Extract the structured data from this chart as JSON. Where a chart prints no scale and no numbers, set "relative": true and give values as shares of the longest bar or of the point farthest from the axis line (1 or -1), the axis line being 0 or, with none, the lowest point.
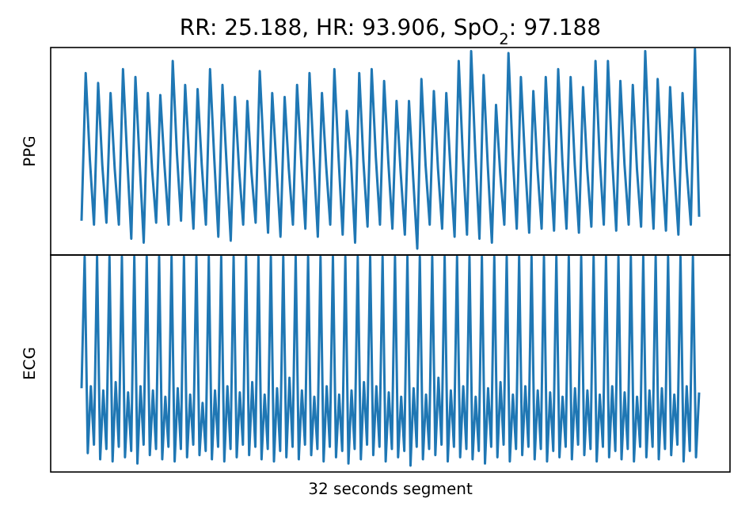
{
  "chart_data": [
    {
      "type": "line",
      "title": "RR: 25.188, HR: 93.906, SpO$_{2}$: 97.188",
      "ylabel": "PPG",
      "relative": true,
      "categories": [
        null,
        null,
        null,
        null,
        null,
        null,
        null,
        null,
        null,
        null,
        null,
        null,
        null,
        null,
        null,
        null,
        null,
        null,
        null,
        null,
        null,
        null,
        null,
        null,
        null,
        null,
        null,
        null,
        null,
        null,
        null,
        null,
        null,
        null,
        null,
        null,
        null,
        null,
        null,
        null,
        null,
        null,
        null,
        null,
        null,
        null,
        null,
        null,
        null,
        null,
        null,
        null,
        null,
        null,
        null,
        null,
        null,
        null,
        null,
        null,
        null,
        null,
        null,
        null,
        null,
        null,
        null,
        null,
        null,
        null,
        null,
        null,
        null,
        null,
        null,
        null,
        null,
        null,
        null,
        null,
        null,
        null,
        null,
        null,
        null,
        null,
        null,
        null,
        null,
        null,
        null,
        null,
        null,
        null,
        null,
        null,
        null,
        null,
        null,
        null,
        null,
        null,
        null,
        null,
        null,
        null,
        null,
        null,
        null,
        null,
        null,
        null,
        null,
        null,
        null,
        null,
        null,
        null,
        null,
        null,
        null,
        null,
        null,
        null,
        null,
        null,
        null,
        null,
        null,
        null,
        null,
        null,
        null,
        null,
        null,
        null,
        null,
        null,
        null,
        null,
        null,
        null,
        null,
        null,
        null,
        null,
        null,
        null,
        null,
        null
      ],
      "series": [
        {
          "color": "#1f77b4",
          "values": [
            0.14,
            0.88,
            0.45,
            0.12,
            0.83,
            0.42,
            0.13,
            0.78,
            0.4,
            0.12,
            0.9,
            0.46,
            0.05,
            0.86,
            0.44,
            0.03,
            0.78,
            0.4,
            0.13,
            0.77,
            0.42,
            0.12,
            0.94,
            0.48,
            0.14,
            0.82,
            0.44,
            0.1,
            0.8,
            0.42,
            0.12,
            0.9,
            0.46,
            0.06,
            0.82,
            0.42,
            0.04,
            0.76,
            0.4,
            0.12,
            0.74,
            0.38,
            0.13,
            0.89,
            0.46,
            0.08,
            0.78,
            0.42,
            0.06,
            0.76,
            0.4,
            0.12,
            0.82,
            0.44,
            0.1,
            0.88,
            0.46,
            0.06,
            0.78,
            0.42,
            0.12,
            0.9,
            0.46,
            0.07,
            0.69,
            0.45,
            0.03,
            0.88,
            0.44,
            0.11,
            0.9,
            0.46,
            0.12,
            0.84,
            0.44,
            0.1,
            0.74,
            0.38,
            0.07,
            0.74,
            0.36,
            0,
            0.85,
            0.42,
            0.12,
            0.79,
            0.4,
            0.1,
            0.78,
            0.4,
            0.06,
            0.94,
            0.46,
            0.07,
            0.99,
            0.48,
            0.05,
            0.87,
            0.42,
            0.03,
            0.72,
            0.38,
            0.12,
            0.98,
            0.48,
            0.1,
            0.86,
            0.44,
            0.08,
            0.79,
            0.4,
            0.1,
            0.86,
            0.44,
            0.09,
            0.9,
            0.44,
            0.1,
            0.86,
            0.42,
            0.08,
            0.81,
            0.4,
            0.11,
            0.94,
            0.46,
            0.12,
            0.94,
            0.46,
            0.09,
            0.84,
            0.42,
            0.12,
            0.82,
            0.4,
            0.11,
            0.99,
            0.48,
            0.1,
            0.85,
            0.42,
            0.09,
            0.81,
            0.4,
            0.07,
            0.78,
            0.4,
            0.12,
            1,
            0.16
          ]
        }
      ]
    },
    {
      "type": "line",
      "ylabel": "ECG",
      "xlabel": "32 seconds segment",
      "relative": true,
      "categories": [
        null,
        null,
        null,
        null,
        null,
        null,
        null,
        null,
        null,
        null,
        null,
        null,
        null,
        null,
        null,
        null,
        null,
        null,
        null,
        null,
        null,
        null,
        null,
        null,
        null,
        null,
        null,
        null,
        null,
        null,
        null,
        null,
        null,
        null,
        null,
        null,
        null,
        null,
        null,
        null,
        null,
        null,
        null,
        null,
        null,
        null,
        null,
        null,
        null,
        null,
        null,
        null,
        null,
        null,
        null,
        null,
        null,
        null,
        null,
        null,
        null,
        null,
        null,
        null,
        null,
        null,
        null,
        null,
        null,
        null,
        null,
        null,
        null,
        null,
        null,
        null,
        null,
        null,
        null,
        null,
        null,
        null,
        null,
        null,
        null,
        null,
        null,
        null,
        null,
        null,
        null,
        null,
        null,
        null,
        null,
        null,
        null,
        null,
        null,
        null,
        null,
        null,
        null,
        null,
        null,
        null,
        null,
        null,
        null,
        null,
        null,
        null,
        null,
        null,
        null,
        null,
        null,
        null,
        null,
        null,
        null,
        null,
        null,
        null,
        null,
        null,
        null,
        null,
        null,
        null,
        null,
        null,
        null,
        null,
        null,
        null,
        null,
        null,
        null,
        null,
        null,
        null,
        null,
        null,
        null,
        null,
        null,
        null,
        null,
        null,
        null,
        null,
        null,
        null,
        null,
        null,
        null,
        null,
        null,
        null,
        null,
        null,
        null,
        null,
        null,
        null,
        null,
        null,
        null,
        null,
        null,
        null,
        null,
        null,
        null,
        null,
        null,
        null,
        null,
        null,
        null,
        null,
        null,
        null,
        null,
        null,
        null,
        null,
        null,
        null,
        null,
        null,
        null,
        null,
        null,
        null,
        null,
        null,
        null,
        null
      ],
      "series": [
        {
          "color": "#1f77b4",
          "values": [
            0.37,
            1,
            0.06,
            0.38,
            0.1,
            1,
            0.03,
            0.36,
            0.08,
            1,
            0.02,
            0.4,
            0.09,
            1,
            0.04,
            0.35,
            0.07,
            1,
            0.01,
            0.38,
            0.1,
            1,
            0.05,
            0.36,
            0.08,
            1,
            0.03,
            0.33,
            0.09,
            1,
            0.02,
            0.37,
            0.08,
            1,
            0.04,
            0.34,
            0.1,
            1,
            0.05,
            0.3,
            0.07,
            1,
            0.03,
            0.36,
            0.09,
            1,
            0.02,
            0.38,
            0.08,
            1,
            0.04,
            0.35,
            0.1,
            1,
            0.05,
            0.4,
            0.09,
            1,
            0.03,
            0.34,
            0.08,
            1,
            0.02,
            0.37,
            0.07,
            1,
            0.04,
            0.42,
            0.09,
            1,
            0.03,
            0.36,
            0.1,
            1,
            0.05,
            0.33,
            0.08,
            1,
            0.02,
            0.38,
            0.09,
            1,
            0.04,
            0.34,
            0.07,
            1,
            0.01,
            0.36,
            0.08,
            1,
            0.03,
            0.4,
            0.1,
            1,
            0.05,
            0.38,
            0.09,
            1,
            0.02,
            0.35,
            0.08,
            1,
            0.04,
            0.33,
            0.07,
            1,
            0.0,
            0.37,
            0.09,
            1,
            0.03,
            0.34,
            0.08,
            1,
            0.05,
            0.42,
            0.1,
            1,
            0.02,
            0.36,
            0.09,
            1,
            0.04,
            0.38,
            0.08,
            1,
            0.03,
            0.33,
            0.07,
            1,
            0.01,
            0.37,
            0.09,
            1,
            0.04,
            0.4,
            0.1,
            1,
            0.02,
            0.34,
            0.08,
            1,
            0.05,
            0.38,
            0.09,
            1,
            0.03,
            0.36,
            0.08,
            1,
            0.02,
            0.35,
            0.07,
            1,
            0.04,
            0.33,
            0.09,
            1,
            0.03,
            0.37,
            0.1,
            1,
            0.05,
            0.36,
            0.08,
            1,
            0.02,
            0.34,
            0.09,
            1,
            0.04,
            0.38,
            0.07,
            1,
            0.03,
            0.35,
            0.08,
            1,
            0.02,
            0.33,
            0.09,
            1,
            0.04,
            0.36,
            0.09,
            1,
            0.03,
            0.37,
            0.08,
            1,
            0.05,
            0.34,
            0.1,
            1,
            0.02,
            0.38,
            0.07,
            1,
            0.04,
            0.35
          ]
        }
      ]
    }
  ]
}
